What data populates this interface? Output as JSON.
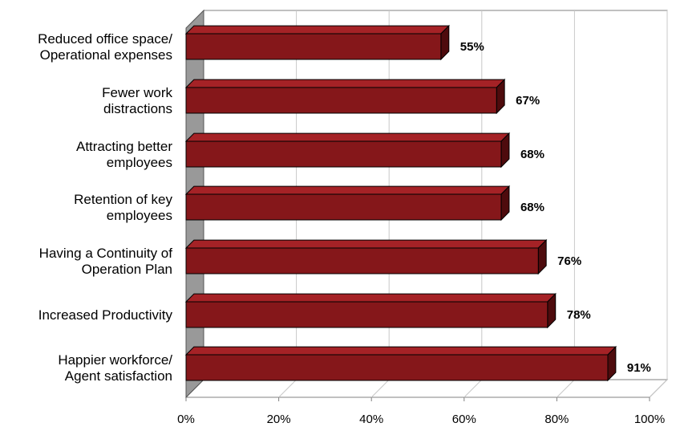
{
  "chart_data": {
    "type": "bar",
    "orientation": "horizontal",
    "style": "3d",
    "categories": [
      [
        "Reduced office space/",
        "Operational expenses"
      ],
      [
        "Fewer work",
        "distractions"
      ],
      [
        "Attracting better",
        "employees"
      ],
      [
        "Retention of key",
        "employees"
      ],
      [
        "Having a Continuity of",
        "Operation Plan"
      ],
      [
        "Increased Productivity"
      ],
      [
        "Happier workforce/",
        "Agent satisfaction"
      ]
    ],
    "values": [
      55,
      67,
      68,
      68,
      76,
      78,
      91
    ],
    "data_labels": [
      "55%",
      "67%",
      "68%",
      "68%",
      "76%",
      "78%",
      "91%"
    ],
    "x_ticks": [
      "0%",
      "20%",
      "40%",
      "60%",
      "80%",
      "100%"
    ],
    "xlim": [
      0,
      100
    ],
    "grid": true,
    "legend": "none",
    "colors": {
      "bar_front": "#85171a",
      "bar_top": "#a52226",
      "bar_side": "#4e0b0d",
      "side_wall": "#999999",
      "gridline": "#c8c8c8",
      "axis": "#808080"
    }
  }
}
